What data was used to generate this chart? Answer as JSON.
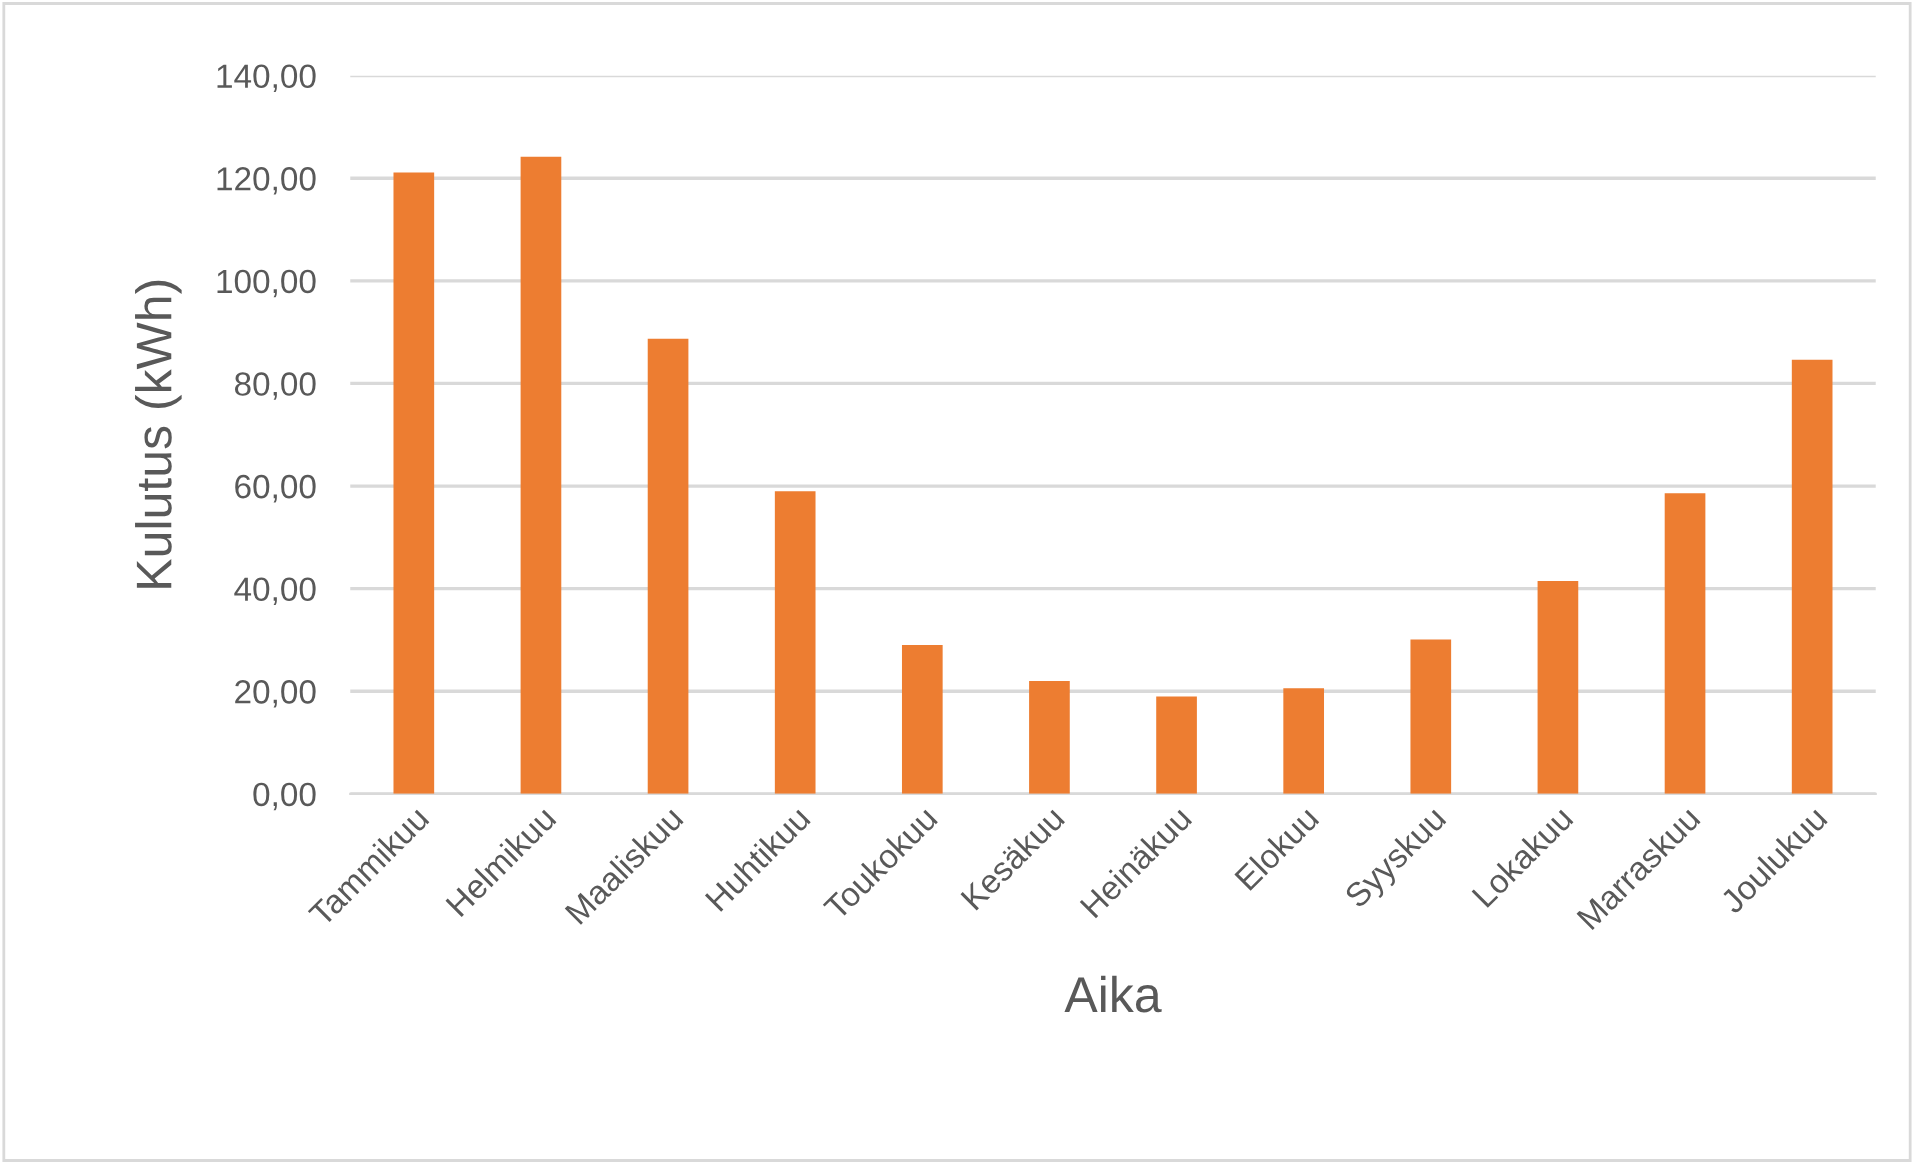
{
  "chart_data": {
    "type": "bar",
    "xlabel": "Aika",
    "ylabel": "Kulutus (kWh)",
    "categories": [
      "Tammikuu",
      "Helmikuu",
      "Maaliskuu",
      "Huhtikuu",
      "Toukokuu",
      "Kesäkuu",
      "Heinäkuu",
      "Elokuu",
      "Syyskuu",
      "Lokakuu",
      "Marraskuu",
      "Joulukuu"
    ],
    "values": [
      121.1,
      124.2,
      88.7,
      59.0,
      29.0,
      22.0,
      19.0,
      20.6,
      30.1,
      41.5,
      58.6,
      84.6
    ],
    "color": "#ed7d31",
    "ylim": [
      0,
      140
    ],
    "yticks": [
      {
        "value": 0,
        "label": "0,00"
      },
      {
        "value": 20,
        "label": "20,00"
      },
      {
        "value": 40,
        "label": "40,00"
      },
      {
        "value": 60,
        "label": "60,00"
      },
      {
        "value": 80,
        "label": "80,00"
      },
      {
        "value": 100,
        "label": "100,00"
      },
      {
        "value": 120,
        "label": "120,00"
      },
      {
        "value": 140,
        "label": "140,00"
      }
    ],
    "grid": "y"
  }
}
